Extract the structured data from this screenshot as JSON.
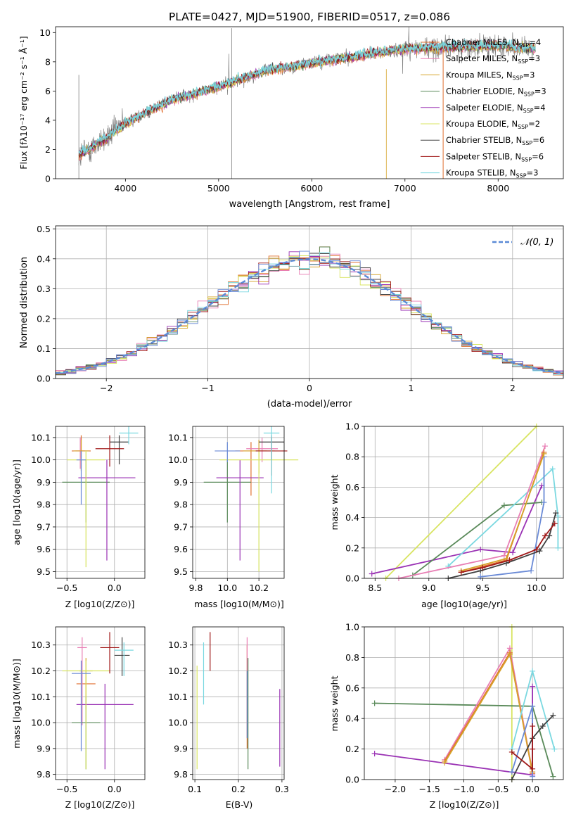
{
  "colors": {
    "data": "#808080",
    "fit_dashed": "#5a8ad6",
    "series": [
      "#e07030",
      "#e87eb4",
      "#d6a32a",
      "#5a8a5a",
      "#9a32b4",
      "#d8e460",
      "#404040",
      "#a01818",
      "#7ad8e0",
      "#6a8ad6"
    ]
  },
  "panel_spectrum": {
    "title": "PLATE=0427, MJD=51900, FIBERID=0517, z=0.086",
    "xlabel": "wavelength [Angstrom, rest frame]",
    "ylabel": "Flux [fλ10⁻¹⁷ erg cm⁻² s⁻¹ Å⁻¹]",
    "legend": [
      {
        "label": "Chabrier MILES, N_SSP=4",
        "color": "#e07030"
      },
      {
        "label": "Salpeter MILES, N_SSP=3",
        "color": "#e87eb4"
      },
      {
        "label": "Kroupa MILES, N_SSP=3",
        "color": "#d6a32a"
      },
      {
        "label": "Chabrier ELODIE, N_SSP=3",
        "color": "#5a8a5a"
      },
      {
        "label": "Salpeter ELODIE, N_SSP=4",
        "color": "#9a32b4"
      },
      {
        "label": "Kroupa ELODIE, N_SSP=2",
        "color": "#d8e460"
      },
      {
        "label": "Chabrier STELIB, N_SSP=6",
        "color": "#404040"
      },
      {
        "label": "Salpeter STELIB, N_SSP=6",
        "color": "#a01818"
      },
      {
        "label": "Kroupa STELIB, N_SSP=3",
        "color": "#7ad8e0"
      }
    ]
  },
  "panel_hist": {
    "xlabel": "(data-model)/error",
    "ylabel": "Normed distribution",
    "legend_label": "𝒩(0, 1)"
  },
  "panel_age_z": {
    "xlabel": "Z [log10(Z/Z⊙)]",
    "ylabel": "age  [log10(age/yr)]"
  },
  "panel_age_mass": {
    "xlabel": "mass [log10(M/M⊙)]"
  },
  "panel_mw_age": {
    "xlabel": "age  [log10(age/yr)]",
    "ylabel": "mass weight"
  },
  "panel_mass_z": {
    "xlabel": "Z [log10(Z/Z⊙)]",
    "ylabel": "mass [log10(M/M⊙)]"
  },
  "panel_mass_ebv": {
    "xlabel": "E(B-V)"
  },
  "panel_mw_z": {
    "xlabel": "Z [log10(Z/Z⊙)]",
    "ylabel": "mass weight"
  },
  "chart_data": [
    {
      "type": "line",
      "id": "spectrum",
      "xlim": [
        3250,
        8700
      ],
      "ylim": [
        0,
        10.4
      ],
      "xticks": [
        4000,
        5000,
        6000,
        7000,
        8000
      ],
      "yticks": [
        0,
        2,
        4,
        6,
        8,
        10
      ],
      "x_range": [
        3500,
        8400
      ],
      "trend": {
        "x": [
          3500,
          3800,
          4000,
          4500,
          5000,
          5500,
          6000,
          6500,
          7000,
          7500,
          8000,
          8400
        ],
        "y": [
          1.6,
          2.8,
          3.8,
          5.4,
          6.3,
          7.4,
          7.9,
          8.4,
          8.9,
          9.0,
          9.1,
          8.9
        ]
      },
      "series_names": [
        "Chabrier MILES",
        "Salpeter MILES",
        "Kroupa MILES",
        "Chabrier ELODIE",
        "Salpeter ELODIE",
        "Kroupa ELODIE",
        "Chabrier STELIB",
        "Salpeter STELIB",
        "Kroupa STELIB"
      ]
    },
    {
      "type": "bar",
      "id": "residual_histogram",
      "xlim": [
        -2.5,
        2.5
      ],
      "ylim": [
        0,
        0.51
      ],
      "xticks": [
        -2,
        -1,
        0,
        1,
        2
      ],
      "yticks": [
        0.0,
        0.1,
        0.2,
        0.3,
        0.4,
        0.5
      ],
      "bin_width": 0.1,
      "reference_curve": "N(0,1)"
    },
    {
      "type": "scatter",
      "id": "age_vs_Z",
      "xlim": [
        -0.62,
        0.32
      ],
      "ylim": [
        9.47,
        10.15
      ],
      "xticks": [
        -0.5,
        0.0
      ],
      "yticks": [
        9.5,
        9.6,
        9.7,
        9.8,
        9.9,
        10.0,
        10.1
      ],
      "points": [
        {
          "x": -0.35,
          "y": 10.04,
          "xerr": 0.1,
          "yerr": [
            0.03,
            0.07
          ],
          "color": "#e07030"
        },
        {
          "x": -0.36,
          "y": 10.04,
          "xerr": 0.05,
          "yerr": [
            0.08,
            0.06
          ],
          "color": "#e87eb4"
        },
        {
          "x": -0.35,
          "y": 10.04,
          "xerr": 0.08,
          "yerr": [
            0.09,
            0.05
          ],
          "color": "#d6a32a"
        },
        {
          "x": -0.3,
          "y": 9.9,
          "xerr": 0.25,
          "yerr": [
            0.18,
            0.1
          ],
          "color": "#5a8a5a"
        },
        {
          "x": -0.08,
          "y": 9.92,
          "xerr": 0.3,
          "yerr": [
            0.37,
            0.08
          ],
          "color": "#9a32b4"
        },
        {
          "x": -0.3,
          "y": 10.0,
          "xerr": 0.2,
          "yerr": [
            0.48,
            0.04
          ],
          "color": "#d8e460"
        },
        {
          "x": 0.05,
          "y": 10.08,
          "xerr": 0.1,
          "yerr": [
            0.1,
            0.03
          ],
          "color": "#404040"
        },
        {
          "x": -0.05,
          "y": 10.05,
          "xerr": 0.15,
          "yerr": [
            0.08,
            0.06
          ],
          "color": "#a01818"
        },
        {
          "x": 0.15,
          "y": 10.12,
          "xerr": 0.1,
          "yerr": [
            0.05,
            0.03
          ],
          "color": "#7ad8e0"
        },
        {
          "x": -0.35,
          "y": 10.0,
          "xerr": 0.05,
          "yerr": [
            0.2,
            0.04
          ],
          "color": "#6a8ad6"
        }
      ]
    },
    {
      "type": "scatter",
      "id": "age_vs_mass",
      "xlim": [
        9.78,
        10.36
      ],
      "ylim": [
        9.47,
        10.15
      ],
      "xticks": [
        9.8,
        10.0,
        10.2
      ],
      "yticks": [
        9.5,
        9.6,
        9.7,
        9.8,
        9.9,
        10.0,
        10.1
      ],
      "points": [
        {
          "x": 10.15,
          "y": 10.04,
          "xerr": 0.1,
          "yerr": [
            0.2,
            0.04
          ],
          "color": "#e07030"
        },
        {
          "x": 10.22,
          "y": 10.05,
          "xerr": 0.1,
          "yerr": [
            0.06,
            0.05
          ],
          "color": "#e87eb4"
        },
        {
          "x": 10.2,
          "y": 10.04,
          "xerr": 0.1,
          "yerr": [
            0.1,
            0.05
          ],
          "color": "#d6a32a"
        },
        {
          "x": 10.0,
          "y": 9.9,
          "xerr": 0.15,
          "yerr": [
            0.18,
            0.1
          ],
          "color": "#5a8a5a"
        },
        {
          "x": 10.08,
          "y": 9.92,
          "xerr": 0.15,
          "yerr": [
            0.37,
            0.08
          ],
          "color": "#9a32b4"
        },
        {
          "x": 10.2,
          "y": 10.0,
          "xerr": 0.25,
          "yerr": [
            0.5,
            0.04
          ],
          "color": "#d8e460"
        },
        {
          "x": 10.28,
          "y": 10.08,
          "xerr": 0.08,
          "yerr": [
            0.08,
            0.03
          ],
          "color": "#404040"
        },
        {
          "x": 10.28,
          "y": 10.04,
          "xerr": 0.1,
          "yerr": [
            0.11,
            0.06
          ],
          "color": "#a01818"
        },
        {
          "x": 10.28,
          "y": 10.12,
          "xerr": 0.05,
          "yerr": [
            0.27,
            0.03
          ],
          "color": "#7ad8e0"
        },
        {
          "x": 10.0,
          "y": 10.04,
          "xerr": 0.08,
          "yerr": [
            0.05,
            0.04
          ],
          "color": "#6a8ad6"
        }
      ]
    },
    {
      "type": "line",
      "id": "mass_weight_vs_age",
      "xlim": [
        8.4,
        10.25
      ],
      "ylim": [
        0,
        1.0
      ],
      "xticks": [
        8.5,
        9.0,
        9.5,
        10.0
      ],
      "yticks": [
        0.0,
        0.2,
        0.4,
        0.6,
        0.8,
        1.0
      ],
      "series": [
        {
          "color": "#d8e460",
          "x": [
            8.6,
            10.0
          ],
          "y": [
            0.0,
            1.0
          ]
        },
        {
          "color": "#9a32b4",
          "x": [
            8.47,
            9.48,
            9.78,
            10.05
          ],
          "y": [
            0.03,
            0.19,
            0.17,
            0.61
          ]
        },
        {
          "color": "#5a8a5a",
          "x": [
            8.85,
            9.7,
            10.05
          ],
          "y": [
            0.02,
            0.48,
            0.5
          ]
        },
        {
          "color": "#7ad8e0",
          "x": [
            9.18,
            10.15,
            10.2,
            10.2
          ],
          "y": [
            0.08,
            0.72,
            0.41,
            0.2
          ]
        },
        {
          "color": "#6a8ad6",
          "x": [
            9.48,
            9.95,
            10.07,
            10.07
          ],
          "y": [
            0.01,
            0.05,
            0.5,
            0.8
          ]
        },
        {
          "color": "#e87eb4",
          "x": [
            8.72,
            9.7,
            10.08
          ],
          "y": [
            0.0,
            0.15,
            0.87
          ]
        },
        {
          "color": "#e07030",
          "x": [
            9.3,
            9.72,
            10.07
          ],
          "y": [
            0.04,
            0.12,
            0.83
          ]
        },
        {
          "color": "#d6a32a",
          "x": [
            9.3,
            9.72,
            10.07
          ],
          "y": [
            0.05,
            0.13,
            0.82
          ]
        },
        {
          "color": "#404040",
          "x": [
            9.18,
            9.48,
            9.72,
            10.03,
            10.12,
            10.18
          ],
          "y": [
            0.0,
            0.05,
            0.1,
            0.18,
            0.28,
            0.43
          ]
        },
        {
          "color": "#a01818",
          "x": [
            9.3,
            9.5,
            9.75,
            10.0,
            10.08,
            10.17
          ],
          "y": [
            0.04,
            0.07,
            0.12,
            0.19,
            0.28,
            0.36
          ]
        }
      ]
    },
    {
      "type": "scatter",
      "id": "mass_vs_Z",
      "xlim": [
        -0.62,
        0.32
      ],
      "ylim": [
        9.78,
        10.37
      ],
      "xticks": [
        -0.5,
        0.0
      ],
      "yticks": [
        9.8,
        9.9,
        10.0,
        10.1,
        10.2,
        10.3
      ],
      "points": [
        {
          "x": -0.3,
          "y": 10.15,
          "xerr": 0.1,
          "yerr": [
            0.1,
            0.05
          ],
          "color": "#e07030"
        },
        {
          "x": -0.34,
          "y": 10.29,
          "xerr": 0.05,
          "yerr": [
            0.3,
            0.04
          ],
          "color": "#e87eb4"
        },
        {
          "x": -0.3,
          "y": 10.2,
          "xerr": 0.07,
          "yerr": [
            0.15,
            0.05
          ],
          "color": "#d6a32a"
        },
        {
          "x": -0.3,
          "y": 10.0,
          "xerr": 0.15,
          "yerr": [
            0.18,
            0.1
          ],
          "color": "#5a8a5a"
        },
        {
          "x": -0.1,
          "y": 10.07,
          "xerr": 0.3,
          "yerr": [
            0.25,
            0.08
          ],
          "color": "#9a32b4"
        },
        {
          "x": -0.3,
          "y": 10.2,
          "xerr": 0.25,
          "yerr": [
            0.38,
            0.04
          ],
          "color": "#d8e460"
        },
        {
          "x": 0.08,
          "y": 10.26,
          "xerr": 0.08,
          "yerr": [
            0.08,
            0.07
          ],
          "color": "#404040"
        },
        {
          "x": -0.05,
          "y": 10.29,
          "xerr": 0.1,
          "yerr": [
            0.1,
            0.06
          ],
          "color": "#a01818"
        },
        {
          "x": 0.1,
          "y": 10.28,
          "xerr": 0.1,
          "yerr": [
            0.1,
            0.03
          ],
          "color": "#7ad8e0"
        },
        {
          "x": -0.35,
          "y": 10.19,
          "xerr": 0.1,
          "yerr": [
            0.3,
            0.05
          ],
          "color": "#6a8ad6"
        }
      ]
    },
    {
      "type": "scatter",
      "id": "mass_vs_EBV",
      "xlim": [
        0.095,
        0.305
      ],
      "ylim": [
        9.78,
        10.37
      ],
      "xticks": [
        0.1,
        0.2,
        0.3
      ],
      "yticks": [
        9.8,
        9.9,
        10.0,
        10.1,
        10.2,
        10.3
      ],
      "points": [
        {
          "x": 0.22,
          "y": 10.2,
          "yerr": [
            0.3,
            0.1
          ],
          "color": "#e07030"
        },
        {
          "x": 0.22,
          "y": 10.2,
          "yerr": [
            0.26,
            0.13
          ],
          "color": "#e87eb4"
        },
        {
          "x": 0.222,
          "y": 10.2,
          "yerr": [
            0.38,
            0.05
          ],
          "color": "#5a8a5a"
        },
        {
          "x": 0.295,
          "y": 10.0,
          "yerr": [
            0.17,
            0.13
          ],
          "color": "#9a32b4"
        },
        {
          "x": 0.105,
          "y": 10.05,
          "yerr": [
            0.23,
            0.17
          ],
          "color": "#d8e460"
        },
        {
          "x": 0.135,
          "y": 10.29,
          "yerr": [
            0.09,
            0.06
          ],
          "color": "#a01818"
        },
        {
          "x": 0.12,
          "y": 10.22,
          "yerr": [
            0.15,
            0.09
          ],
          "color": "#7ad8e0"
        },
        {
          "x": 0.22,
          "y": 10.1,
          "yerr": [
            0.16,
            0.1
          ],
          "color": "#6a8ad6"
        }
      ]
    },
    {
      "type": "line",
      "id": "mass_weight_vs_Z",
      "xlim": [
        -2.45,
        0.45
      ],
      "ylim": [
        0,
        1.0
      ],
      "xticks": [
        -2.0,
        -1.5,
        -1.0,
        -0.5,
        0.0
      ],
      "yticks": [
        0.0,
        0.2,
        0.4,
        0.6,
        0.8,
        1.0
      ],
      "series": [
        {
          "color": "#d8e460",
          "x": [
            -0.3,
            -0.3
          ],
          "y": [
            0.0,
            1.0
          ]
        },
        {
          "color": "#5a8a5a",
          "x": [
            -2.3,
            0.0,
            0.3
          ],
          "y": [
            0.5,
            0.48,
            0.02
          ]
        },
        {
          "color": "#9a32b4",
          "x": [
            -2.3,
            0.0,
            0.0
          ],
          "y": [
            0.17,
            0.03,
            0.61
          ]
        },
        {
          "color": "#e87eb4",
          "x": [
            -1.28,
            -0.33,
            0.0
          ],
          "y": [
            0.13,
            0.86,
            0.05
          ]
        },
        {
          "color": "#e07030",
          "x": [
            -1.28,
            -0.33,
            0.0
          ],
          "y": [
            0.12,
            0.83,
            0.04
          ]
        },
        {
          "color": "#d6a32a",
          "x": [
            -1.28,
            -0.33,
            0.0
          ],
          "y": [
            0.11,
            0.82,
            0.05
          ]
        },
        {
          "color": "#7ad8e0",
          "x": [
            -0.3,
            0.0,
            0.32
          ],
          "y": [
            0.2,
            0.71,
            0.2
          ]
        },
        {
          "color": "#6a8ad6",
          "x": [
            -0.3,
            0.0,
            0.0
          ],
          "y": [
            0.05,
            0.48,
            0.02
          ]
        },
        {
          "color": "#404040",
          "x": [
            -0.3,
            0.0,
            0.15,
            0.3
          ],
          "y": [
            0.0,
            0.27,
            0.35,
            0.42
          ]
        },
        {
          "color": "#a01818",
          "x": [
            -0.3,
            0.0,
            0.0,
            0.0
          ],
          "y": [
            0.18,
            0.07,
            0.2,
            0.35
          ]
        }
      ]
    }
  ]
}
